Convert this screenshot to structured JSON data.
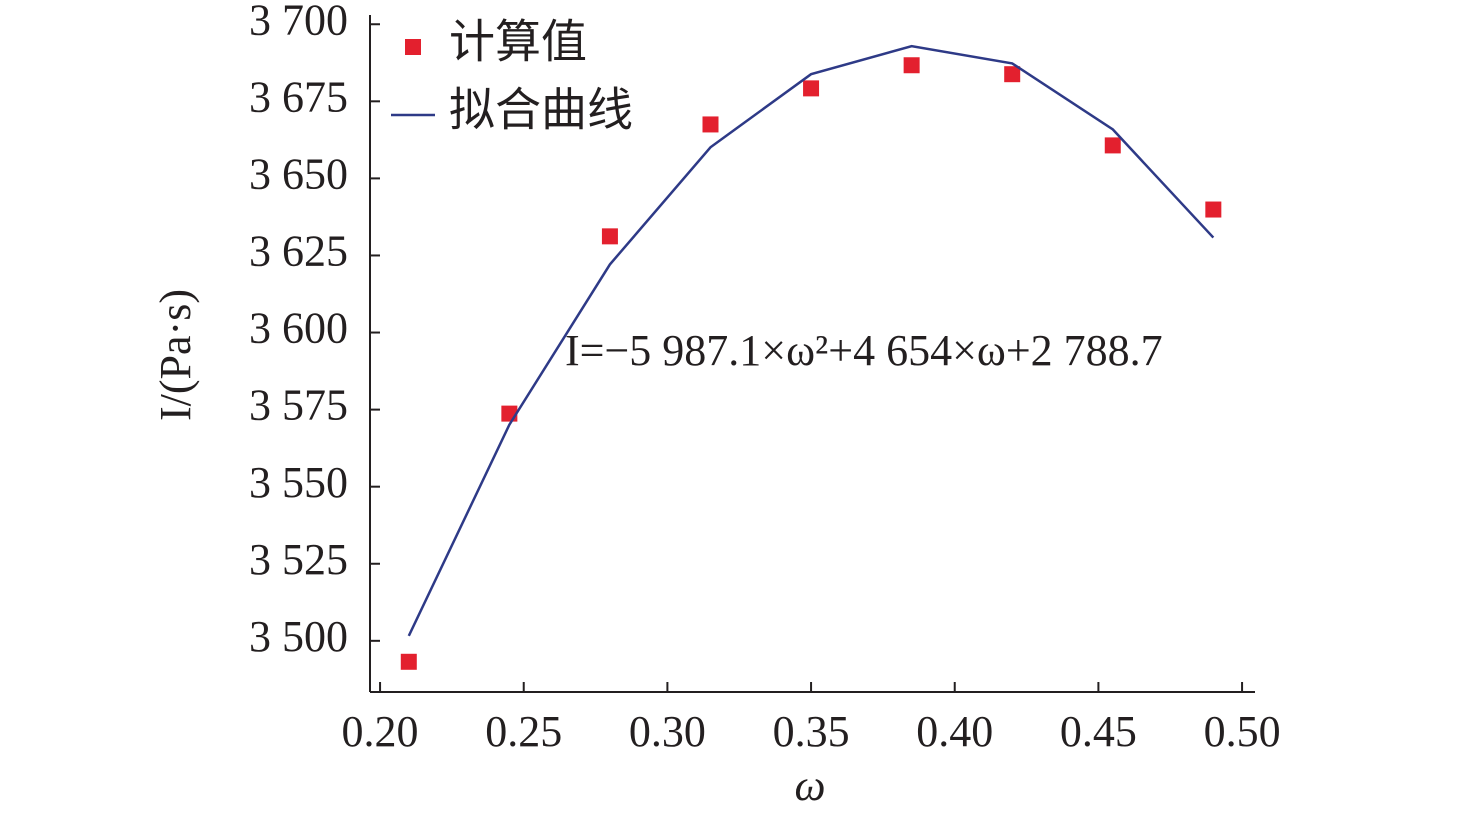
{
  "chart_data": {
    "type": "scatter",
    "x_label": "ω",
    "y_label": "I/(Pa·s)",
    "annotation": "I=−5 987.1×ω²+4 654×ω+2 788.7",
    "x": [
      0.21,
      0.245,
      0.28,
      0.315,
      0.35,
      0.385,
      0.42,
      0.455,
      0.49
    ],
    "series": [
      {
        "name": "计算值",
        "color": "#e3202e",
        "marker": "square",
        "values": [
          3493.2,
          3573.7,
          3631.2,
          3667.5,
          3679.2,
          3686.7,
          3683.8,
          3660.7,
          3639.9
        ]
      },
      {
        "name": "拟合曲线",
        "color": "#2e3a87",
        "marker": "line",
        "values": [
          3501.6,
          3570.1,
          3622.1,
          3660.1,
          3683.8,
          3692.9,
          3687.3,
          3665.9,
          3630.8
        ]
      }
    ],
    "xlim": [
      0.1965,
      0.5045
    ],
    "ylim": [
      3483.4,
      3703
    ],
    "xticks": [
      {
        "value": 0.2,
        "label": "0.20"
      },
      {
        "value": 0.25,
        "label": "0.25"
      },
      {
        "value": 0.3,
        "label": "0.30"
      },
      {
        "value": 0.35,
        "label": "0.35"
      },
      {
        "value": 0.4,
        "label": "0.40"
      },
      {
        "value": 0.45,
        "label": "0.45"
      },
      {
        "value": 0.5,
        "label": "0.50"
      }
    ],
    "yticks": [
      {
        "value": 3500,
        "label": "3 500"
      },
      {
        "value": 3525,
        "label": "3 525"
      },
      {
        "value": 3550,
        "label": "3 550"
      },
      {
        "value": 3575,
        "label": "3 575"
      },
      {
        "value": 3600,
        "label": "3 600"
      },
      {
        "value": 3625,
        "label": "3 625"
      },
      {
        "value": 3650,
        "label": "3 650"
      },
      {
        "value": 3675,
        "label": "3 675"
      },
      {
        "value": 3700,
        "label": "3 700"
      }
    ],
    "legend": "upper left"
  }
}
